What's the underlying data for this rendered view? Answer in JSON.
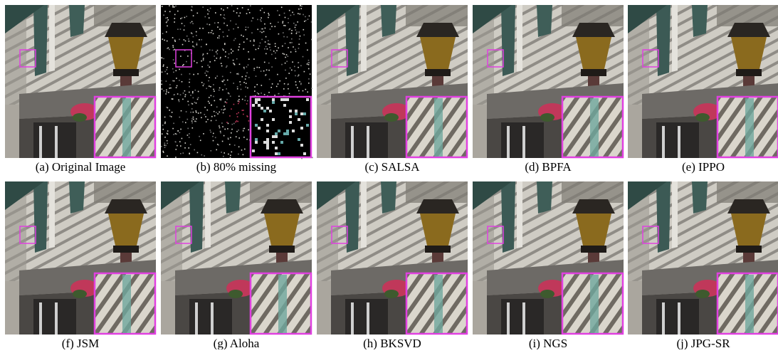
{
  "figure": {
    "panels": [
      {
        "caption": "(a) Original Image"
      },
      {
        "caption": "(b) 80% missing"
      },
      {
        "caption": "(c) SALSA"
      },
      {
        "caption": "(d) BPFA"
      },
      {
        "caption": "(e) IPPO"
      },
      {
        "caption": "(f) JSM"
      },
      {
        "caption": "(g) Aloha"
      },
      {
        "caption": "(h) BKSVD"
      },
      {
        "caption": "(i) NGS"
      },
      {
        "caption": "(j) JPG-SR"
      }
    ]
  }
}
